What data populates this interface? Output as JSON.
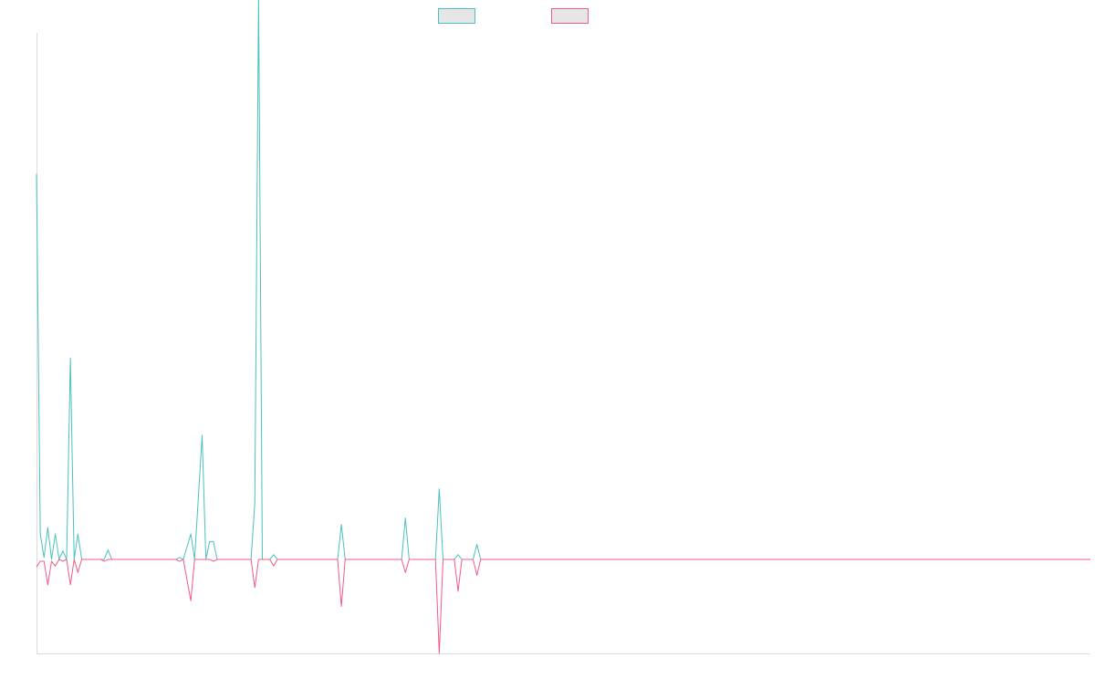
{
  "chart_data": {
    "type": "line",
    "title": "",
    "xlabel": "",
    "ylabel": "",
    "grid": false,
    "legend_position": "top-center",
    "series": [
      {
        "legend_label": "",
        "color": "#4bc0c0",
        "fill": "#e6e6e6",
        "points": [
          [
            0,
            410
          ],
          [
            1,
            27
          ],
          [
            2,
            2
          ],
          [
            3,
            34
          ],
          [
            4,
            0
          ],
          [
            5,
            27
          ],
          [
            6,
            0
          ],
          [
            7,
            9
          ],
          [
            8,
            0
          ],
          [
            9,
            214
          ],
          [
            10,
            0
          ],
          [
            11,
            27
          ],
          [
            12,
            0
          ],
          [
            18,
            0
          ],
          [
            19,
            10
          ],
          [
            20,
            0
          ],
          [
            37,
            0
          ],
          [
            38,
            2
          ],
          [
            39,
            0
          ],
          [
            41,
            27
          ],
          [
            42,
            0
          ],
          [
            44,
            132
          ],
          [
            45,
            0
          ],
          [
            46,
            19
          ],
          [
            47,
            19
          ],
          [
            48,
            0
          ],
          [
            57,
            0
          ],
          [
            58,
            60
          ],
          [
            59,
            600
          ],
          [
            60,
            0
          ],
          [
            62,
            0
          ],
          [
            63,
            5
          ],
          [
            64,
            0
          ],
          [
            80,
            0
          ],
          [
            81,
            37
          ],
          [
            82,
            0
          ],
          [
            97,
            0
          ],
          [
            98,
            44
          ],
          [
            99,
            0
          ],
          [
            106,
            0
          ],
          [
            107,
            75
          ],
          [
            108,
            0
          ],
          [
            111,
            0
          ],
          [
            112,
            5
          ],
          [
            113,
            0
          ],
          [
            116,
            0
          ],
          [
            117,
            16
          ],
          [
            118,
            0
          ],
          [
            280,
            0
          ]
        ]
      },
      {
        "legend_label": "",
        "color": "#f35a85",
        "fill": "#e6e6e6",
        "points": [
          [
            0,
            -8
          ],
          [
            1,
            -2
          ],
          [
            2,
            -2
          ],
          [
            3,
            -27
          ],
          [
            4,
            -2
          ],
          [
            5,
            -7
          ],
          [
            6,
            0
          ],
          [
            7,
            -2
          ],
          [
            8,
            0
          ],
          [
            9,
            -27
          ],
          [
            10,
            0
          ],
          [
            11,
            -14
          ],
          [
            12,
            0
          ],
          [
            17,
            0
          ],
          [
            18,
            -2
          ],
          [
            19,
            0
          ],
          [
            37,
            0
          ],
          [
            38,
            -2
          ],
          [
            39,
            0
          ],
          [
            41,
            -44
          ],
          [
            42,
            0
          ],
          [
            46,
            0
          ],
          [
            47,
            -2
          ],
          [
            48,
            0
          ],
          [
            57,
            0
          ],
          [
            58,
            -30
          ],
          [
            59,
            0
          ],
          [
            62,
            0
          ],
          [
            63,
            -7
          ],
          [
            64,
            0
          ],
          [
            80,
            0
          ],
          [
            81,
            -50
          ],
          [
            82,
            0
          ],
          [
            97,
            0
          ],
          [
            98,
            -14
          ],
          [
            99,
            0
          ],
          [
            106,
            0
          ],
          [
            107,
            -100
          ],
          [
            108,
            0
          ],
          [
            111,
            0
          ],
          [
            112,
            -34
          ],
          [
            113,
            0
          ],
          [
            116,
            0
          ],
          [
            117,
            -17
          ],
          [
            118,
            0
          ],
          [
            280,
            0
          ]
        ]
      }
    ],
    "xlim": [
      0,
      280
    ],
    "ylim": [
      -100,
      560
    ]
  }
}
